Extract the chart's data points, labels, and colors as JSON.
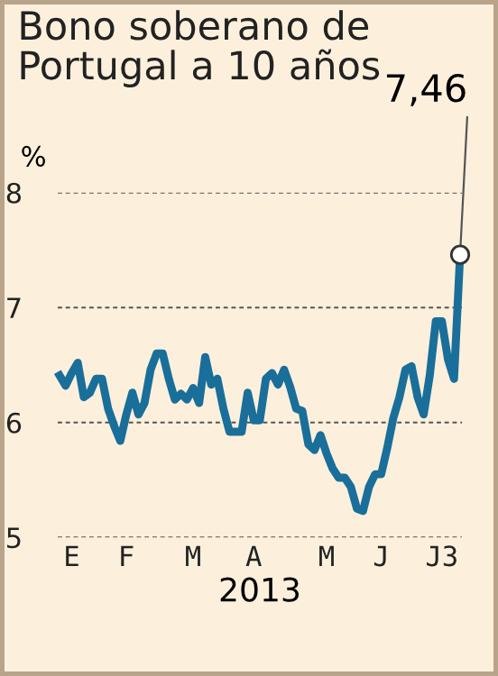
{
  "chart_data": {
    "type": "line",
    "title": "Bono soberano de\nPortugal a 10 años",
    "ylabel": "%",
    "xlabel": "2013",
    "categories": [
      null,
      null,
      "E",
      null,
      null,
      null,
      null,
      null,
      null,
      null,
      null,
      "F",
      null,
      null,
      null,
      null,
      null,
      null,
      null,
      null,
      null,
      null,
      "M",
      null,
      null,
      null,
      null,
      null,
      null,
      null,
      null,
      null,
      "A",
      null,
      null,
      null,
      null,
      null,
      null,
      null,
      null,
      null,
      null,
      null,
      "M",
      null,
      null,
      null,
      null,
      null,
      null,
      null,
      null,
      "J",
      null,
      null,
      null,
      null,
      null,
      null,
      null,
      null,
      null,
      "J3",
      null,
      null,
      null
    ],
    "series": [
      {
        "color": "#1a6e9a",
        "values": [
          6.41,
          6.32,
          6.43,
          6.52,
          6.22,
          6.26,
          6.38,
          6.38,
          6.12,
          5.97,
          5.84,
          6.07,
          6.26,
          6.07,
          6.17,
          6.46,
          6.6,
          6.6,
          6.38,
          6.2,
          6.25,
          6.2,
          6.3,
          6.17,
          6.57,
          6.33,
          6.38,
          6.12,
          5.92,
          5.92,
          5.92,
          6.26,
          6.02,
          6.02,
          6.38,
          6.43,
          6.33,
          6.46,
          6.31,
          6.12,
          6.1,
          5.81,
          5.76,
          5.89,
          5.73,
          5.6,
          5.52,
          5.52,
          5.44,
          5.25,
          5.23,
          5.44,
          5.55,
          5.55,
          5.78,
          6.04,
          6.22,
          6.46,
          6.49,
          6.22,
          6.07,
          6.41,
          6.88,
          6.88,
          6.55,
          6.38,
          7.46
        ],
        "value_labels": [
          null,
          null,
          null,
          null,
          null,
          null,
          null,
          null,
          null,
          null,
          null,
          null,
          null,
          null,
          null,
          null,
          null,
          null,
          null,
          null,
          null,
          null,
          null,
          null,
          null,
          null,
          null,
          null,
          null,
          null,
          null,
          null,
          null,
          null,
          null,
          null,
          null,
          null,
          null,
          null,
          null,
          null,
          null,
          null,
          null,
          null,
          null,
          null,
          null,
          null,
          null,
          null,
          null,
          null,
          null,
          null,
          null,
          null,
          null,
          null,
          null,
          null,
          null,
          null,
          null,
          null,
          "7,46"
        ]
      }
    ],
    "ylim": [
      5,
      8
    ],
    "yticks": [
      5,
      6,
      7,
      8
    ],
    "grid": "y",
    "line_style": "solid"
  }
}
